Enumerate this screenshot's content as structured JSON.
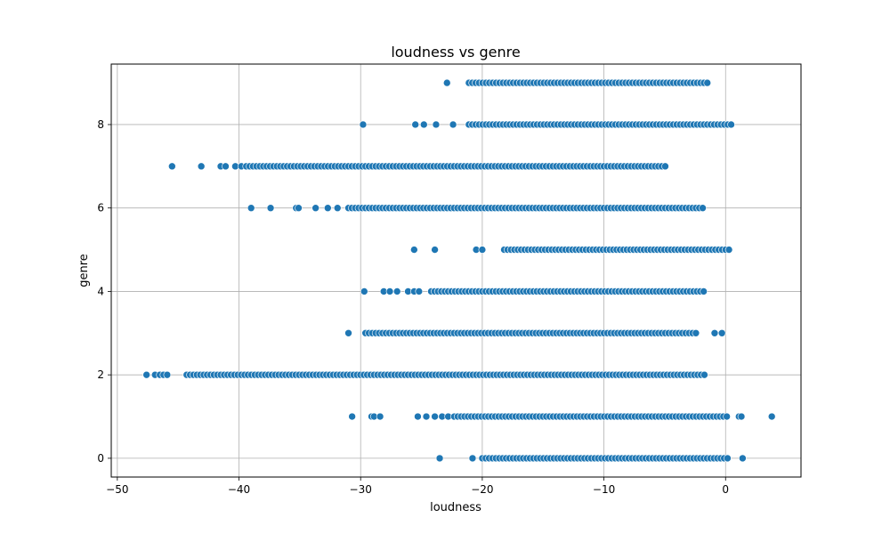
{
  "chart_data": {
    "type": "scatter",
    "title": "loudness vs genre",
    "xlabel": "loudness",
    "ylabel": "genre",
    "xlim": [
      -50.5,
      6.2
    ],
    "ylim": [
      -0.45,
      9.45
    ],
    "xticks": [
      -50,
      -40,
      -30,
      -20,
      -10,
      0
    ],
    "xtick_labels": [
      "−50",
      "−40",
      "−30",
      "−20",
      "−10",
      "0"
    ],
    "yticks": [
      0,
      2,
      4,
      6,
      8
    ],
    "ytick_labels": [
      "0",
      "2",
      "4",
      "6",
      "8"
    ],
    "grid": true,
    "marker_color": "#1f77b4",
    "series": [
      {
        "genre_rows": [
          {
            "y": 0,
            "points": [
              -23.5,
              -20.8
            ],
            "dense_from": -20,
            "dense_to": 0.3,
            "extra": [
              1.4
            ]
          },
          {
            "y": 1,
            "points": [
              -30.7,
              -29.1,
              -28.9,
              -28.4,
              -25.3,
              -24.6,
              -23.9,
              -23.3,
              -22.8
            ],
            "dense_from": -22.3,
            "dense_to": 0.2,
            "extra": [
              1.1,
              1.3,
              3.8
            ]
          },
          {
            "y": 2,
            "points": [
              -47.6,
              -46.9,
              -46.5,
              -46.2,
              -45.9
            ],
            "dense_from": -44.3,
            "dense_to": -1.7,
            "extra": []
          },
          {
            "y": 3,
            "points": [
              -31.0
            ],
            "dense_from": -29.6,
            "dense_to": -2.4,
            "extra": [
              -0.9,
              -0.3
            ]
          },
          {
            "y": 4,
            "points": [
              -29.7,
              -28.1,
              -27.6,
              -27.0,
              -26.1,
              -25.6,
              -25.2
            ],
            "dense_from": -24.2,
            "dense_to": -1.6,
            "extra": []
          },
          {
            "y": 5,
            "points": [
              -25.6,
              -23.9,
              -20.5,
              -20.0
            ],
            "dense_from": -18.2,
            "dense_to": 0.3,
            "extra": []
          },
          {
            "y": 6,
            "points": [
              -39.0,
              -37.4,
              -35.3,
              -35.1,
              -33.7,
              -32.7,
              -31.9
            ],
            "dense_from": -31.0,
            "dense_to": -1.7,
            "extra": []
          },
          {
            "y": 7,
            "points": [
              -45.5,
              -43.1,
              -41.5,
              -41.1,
              -40.3,
              -39.8
            ],
            "dense_from": -39.4,
            "dense_to": -4.9,
            "extra": []
          },
          {
            "y": 8,
            "points": [
              -29.8,
              -25.5,
              -24.8,
              -23.8,
              -22.4
            ],
            "dense_from": -21.1,
            "dense_to": 0.6,
            "extra": []
          },
          {
            "y": 9,
            "points": [
              -22.9
            ],
            "dense_from": -21.1,
            "dense_to": -1.3,
            "extra": []
          }
        ]
      }
    ]
  }
}
